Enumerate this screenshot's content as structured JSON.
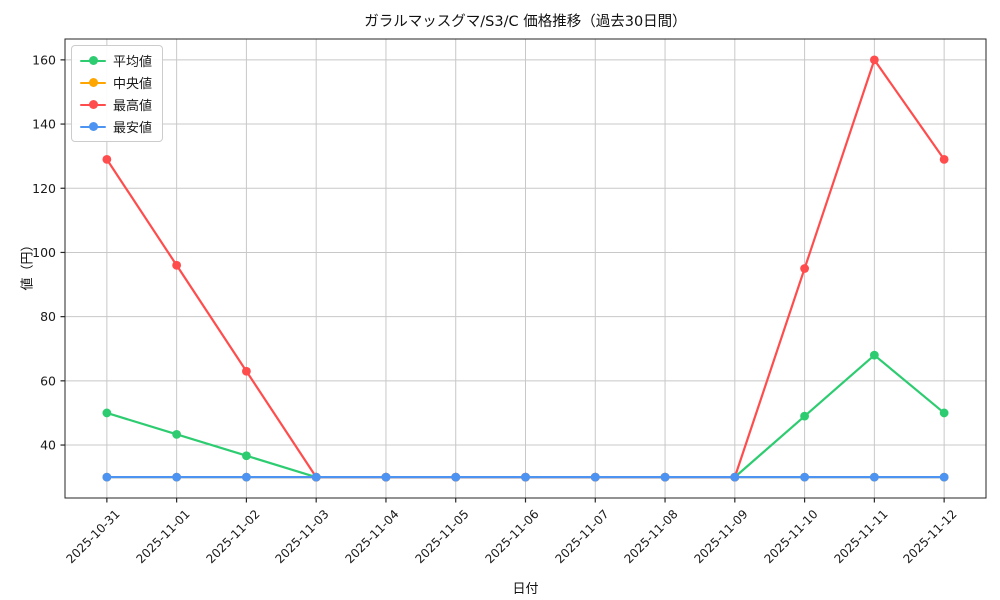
{
  "chart_data": {
    "type": "line",
    "title": "ガラルマッスグマ/S3/C 価格推移（過去30日間）",
    "xlabel": "日付",
    "ylabel": "値（円）",
    "x": [
      "2025-10-31",
      "2025-11-01",
      "2025-11-02",
      "2025-11-03",
      "2025-11-04",
      "2025-11-05",
      "2025-11-06",
      "2025-11-07",
      "2025-11-08",
      "2025-11-09",
      "2025-11-10",
      "2025-11-11",
      "2025-11-12"
    ],
    "series": [
      {
        "name": "平均値",
        "color": "#2ecc71",
        "values": [
          50,
          43.33,
          36.67,
          30,
          30,
          30,
          30,
          30,
          30,
          30,
          49,
          68,
          50
        ]
      },
      {
        "name": "中央値",
        "color": "#ffa500",
        "values": [
          30,
          30,
          30,
          30,
          30,
          30,
          30,
          30,
          30,
          30,
          30,
          30,
          30
        ]
      },
      {
        "name": "最高値",
        "color": "#ff4d4d",
        "values": [
          129,
          96,
          63,
          30,
          30,
          30,
          30,
          30,
          30,
          30,
          95,
          160,
          129
        ]
      },
      {
        "name": "最安値",
        "color": "#4d94f2",
        "values": [
          30,
          30,
          30,
          30,
          30,
          30,
          30,
          30,
          30,
          30,
          30,
          30,
          30
        ]
      }
    ],
    "yticks": [
      40,
      60,
      80,
      100,
      120,
      140,
      160
    ],
    "ylim": [
      23.5,
      166.5
    ],
    "xlim": [
      -0.6,
      12.6
    ],
    "grid": true,
    "grid_color": "#c8c8c8",
    "legend_position": "upper left",
    "xtick_rotation_deg": 45
  }
}
